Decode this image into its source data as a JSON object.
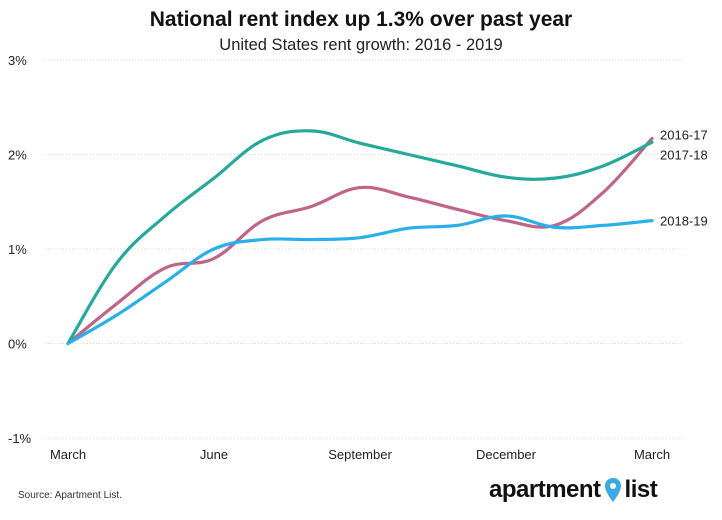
{
  "title": "National rent index up 1.3% over past year",
  "subtitle": "United States rent growth: 2016 - 2019",
  "source": "Source: Apartment List.",
  "logo": {
    "word1": "apartment",
    "word2": "list",
    "pin_color": "#3aa9e4"
  },
  "chart_data": {
    "type": "line",
    "x": [
      0,
      1,
      2,
      3,
      4,
      5,
      6,
      7,
      8,
      9,
      10,
      11,
      12
    ],
    "x_tick_labels": [
      {
        "x": 0,
        "label": "March"
      },
      {
        "x": 3,
        "label": "June"
      },
      {
        "x": 6,
        "label": "September"
      },
      {
        "x": 9,
        "label": "December"
      },
      {
        "x": 12,
        "label": "March"
      }
    ],
    "y_ticks": [
      -1,
      0,
      1,
      2,
      3
    ],
    "y_tick_labels": [
      "-1%",
      "0%",
      "1%",
      "2%",
      "3%"
    ],
    "ylim": [
      -1,
      3
    ],
    "grid": true,
    "series": [
      {
        "name": "2016-17",
        "color": "#c0648a",
        "values": [
          0,
          0.42,
          0.8,
          0.9,
          1.3,
          1.45,
          1.65,
          1.55,
          1.42,
          1.3,
          1.25,
          1.6,
          2.17
        ]
      },
      {
        "name": "2017-18",
        "color": "#26a998",
        "values": [
          0,
          0.85,
          1.35,
          1.75,
          2.15,
          2.25,
          2.12,
          2.0,
          1.88,
          1.76,
          1.75,
          1.88,
          2.13
        ]
      },
      {
        "name": "2018-19",
        "color": "#2ab0e8",
        "values": [
          0,
          0.3,
          0.65,
          1.0,
          1.1,
          1.1,
          1.12,
          1.22,
          1.25,
          1.35,
          1.23,
          1.25,
          1.3
        ]
      }
    ]
  }
}
